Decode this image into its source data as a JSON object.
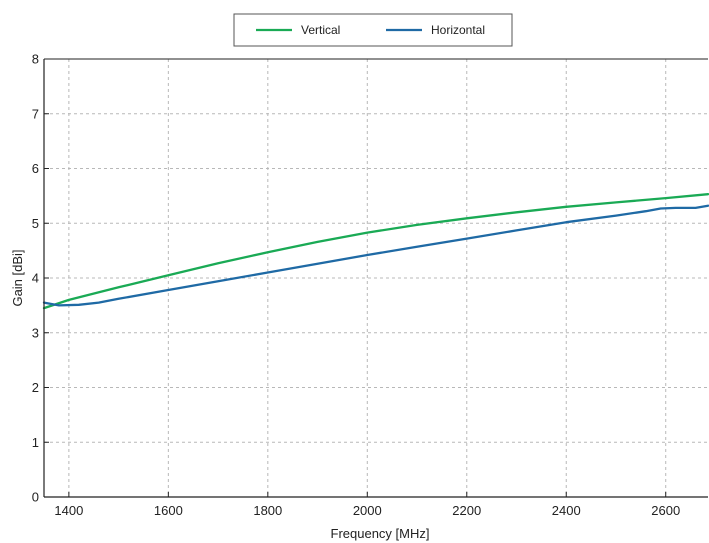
{
  "chart_data": {
    "type": "line",
    "title": "",
    "xlabel": "Frequency [MHz]",
    "ylabel": "Gain [dBi]",
    "xlim": [
      1350,
      2685
    ],
    "ylim": [
      0,
      8
    ],
    "x_ticks": [
      1400,
      1600,
      1800,
      2000,
      2200,
      2400,
      2600
    ],
    "y_ticks": [
      0,
      1,
      2,
      3,
      4,
      5,
      6,
      7,
      8
    ],
    "grid": true,
    "legend_position": "top-center",
    "series": [
      {
        "name": "Vertical",
        "color": "#1aaa55",
        "points": [
          [
            1350,
            3.45
          ],
          [
            1400,
            3.6
          ],
          [
            1500,
            3.83
          ],
          [
            1600,
            4.05
          ],
          [
            1700,
            4.27
          ],
          [
            1800,
            4.47
          ],
          [
            1900,
            4.66
          ],
          [
            2000,
            4.83
          ],
          [
            2100,
            4.97
          ],
          [
            2200,
            5.09
          ],
          [
            2300,
            5.2
          ],
          [
            2400,
            5.3
          ],
          [
            2500,
            5.38
          ],
          [
            2600,
            5.46
          ],
          [
            2685,
            5.53
          ]
        ]
      },
      {
        "name": "Horizontal",
        "color": "#1f6aa5",
        "points": [
          [
            1350,
            3.55
          ],
          [
            1380,
            3.5
          ],
          [
            1420,
            3.51
          ],
          [
            1460,
            3.55
          ],
          [
            1500,
            3.62
          ],
          [
            1600,
            3.78
          ],
          [
            1700,
            3.94
          ],
          [
            1800,
            4.1
          ],
          [
            1900,
            4.26
          ],
          [
            2000,
            4.42
          ],
          [
            2100,
            4.57
          ],
          [
            2200,
            4.72
          ],
          [
            2300,
            4.87
          ],
          [
            2400,
            5.02
          ],
          [
            2500,
            5.14
          ],
          [
            2560,
            5.22
          ],
          [
            2590,
            5.27
          ],
          [
            2620,
            5.28
          ],
          [
            2660,
            5.28
          ],
          [
            2685,
            5.32
          ]
        ]
      }
    ]
  }
}
